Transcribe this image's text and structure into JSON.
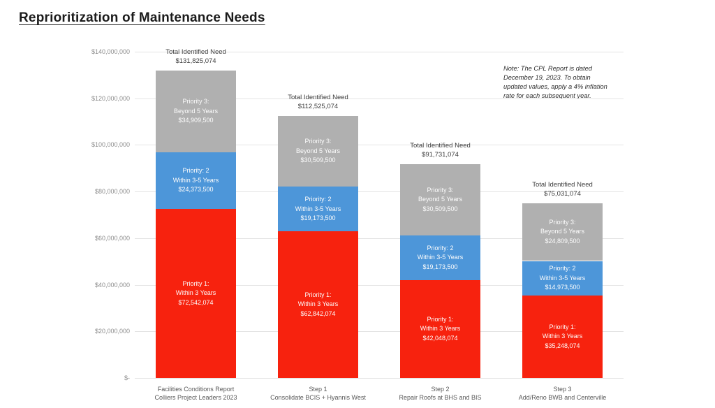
{
  "page": {
    "title": "Reprioritization of Maintenance Needs"
  },
  "note": {
    "lines": [
      "Note: The CPL Report is dated",
      "December 19, 2023. To obtain",
      "updated values, apply a 4% inflation",
      "rate for each subsequent year."
    ]
  },
  "chart_data": {
    "type": "bar",
    "stacked": true,
    "title": "Reprioritization of Maintenance Needs",
    "legend": "none",
    "grid": "horizontal",
    "ylim": [
      0,
      140000000
    ],
    "categories": [
      [
        "Facilities Conditions Report",
        "Colliers Project Leaders 2023"
      ],
      [
        "Step 1",
        "Consolidate BCIS + Hyannis West"
      ],
      [
        "Step 2",
        "Repair Roofs at BHS and BIS"
      ],
      [
        "Step 3",
        "Add/Reno BWB and Centerville"
      ]
    ],
    "series": [
      {
        "name": "Priority 1: Within 3 Years",
        "label_lines": [
          "Priority 1:",
          "Within 3 Years"
        ],
        "color": "#f7220e",
        "values": [
          72542074,
          62842074,
          42048074,
          35248074
        ],
        "value_labels": [
          "$72,542,074",
          "$62,842,074",
          "$42,048,074",
          "$35,248,074"
        ]
      },
      {
        "name": "Priority: 2 Within 3-5 Years",
        "label_lines": [
          "Priority: 2",
          "Within 3-5 Years"
        ],
        "color": "#4d96d9",
        "values": [
          24373500,
          19173500,
          19173500,
          14973500
        ],
        "value_labels": [
          "$24,373,500",
          "$19,173,500",
          "$19,173,500",
          "$14,973,500"
        ]
      },
      {
        "name": "Priority 3: Beyond 5 Years",
        "label_lines": [
          "Priority 3:",
          "Beyond 5 Years"
        ],
        "color": "#b0b0b0",
        "values": [
          34909500,
          30509500,
          30509500,
          24809500
        ],
        "value_labels": [
          "$34,909,500",
          "$30,509,500",
          "$30,509,500",
          "$24,809,500"
        ]
      }
    ],
    "totals": {
      "label": "Total Identified Need",
      "values": [
        131825074,
        112525074,
        91731074,
        75031074
      ],
      "value_labels": [
        "$131,825,074",
        "$112,525,074",
        "$91,731,074",
        "$75,031,074"
      ]
    },
    "y_ticks": [
      {
        "value": 140000000,
        "label": "$140,000,000"
      },
      {
        "value": 120000000,
        "label": "$120,000,000"
      },
      {
        "value": 100000000,
        "label": "$100,000,000"
      },
      {
        "value": 80000000,
        "label": "$80,000,000"
      },
      {
        "value": 60000000,
        "label": "$60,000,000"
      },
      {
        "value": 40000000,
        "label": "$40,000,000"
      },
      {
        "value": 20000000,
        "label": "$20,000,000"
      },
      {
        "value": 0,
        "label": "$-"
      }
    ]
  }
}
